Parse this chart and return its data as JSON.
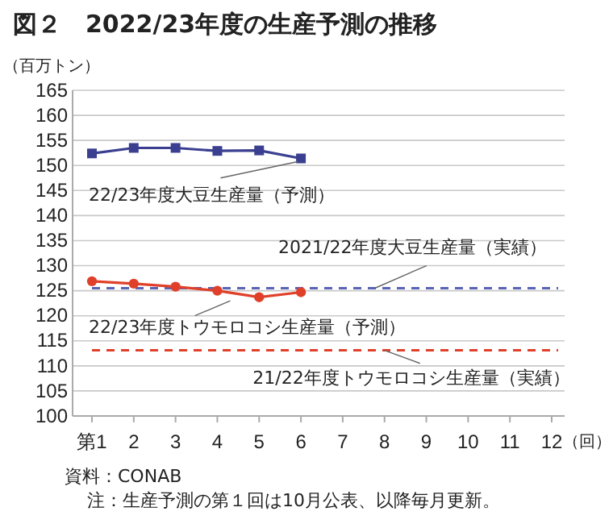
{
  "chart_data": {
    "type": "line",
    "title": "図２　2022/23年度の生産予測の推移",
    "ylabel": "（百万トン）",
    "xlabel": "（回）",
    "categories": [
      "第1",
      "2",
      "3",
      "4",
      "5",
      "6",
      "7",
      "8",
      "9",
      "10",
      "11",
      "12"
    ],
    "series": [
      {
        "name": "22/23年度大豆生産量（予測）",
        "color": "#3a3f8f",
        "marker": "square",
        "values": [
          152.4,
          153.5,
          153.5,
          152.9,
          153.0,
          151.4,
          null,
          null,
          null,
          null,
          null,
          null
        ]
      },
      {
        "name": "22/23年度トウモロコシ生産量（予測）",
        "color": "#e0402a",
        "marker": "circle",
        "values": [
          126.9,
          126.4,
          125.8,
          125.0,
          123.7,
          124.7,
          null,
          null,
          null,
          null,
          null,
          null
        ]
      }
    ],
    "ref_lines": [
      {
        "axis": "y",
        "value": 125.5,
        "label": "2021/22年度大豆生産量（実績）",
        "color": "#5a64b4",
        "line_style": "dashed"
      },
      {
        "axis": "y",
        "value": 113.1,
        "label": "21/22年度トウモロコシ生産量（実績）",
        "color": "#e0402a",
        "line_style": "dashed"
      }
    ],
    "ylim": [
      100,
      165
    ],
    "yticks": [
      100,
      105,
      110,
      115,
      120,
      125,
      130,
      135,
      140,
      145,
      150,
      155,
      160,
      165
    ],
    "grid": "y",
    "annotations": [
      "資料：CONAB",
      "注：生産予測の第１回は10月公表、以降毎月更新。"
    ]
  }
}
